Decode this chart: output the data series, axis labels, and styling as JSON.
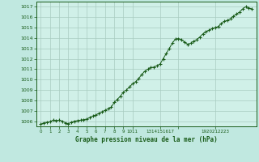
{
  "title": "Graphe pression niveau de la mer (hPa)",
  "bg_color": "#c0e8e0",
  "plot_bg_color": "#d0f0e8",
  "line_color": "#1a5c1a",
  "marker_color": "#1a5c1a",
  "grid_color": "#a8ccc0",
  "tick_label_color": "#1a5c1a",
  "ylim": [
    1005.5,
    1017.5
  ],
  "xlim": [
    -0.5,
    23.5
  ],
  "yticks": [
    1006,
    1007,
    1008,
    1009,
    1010,
    1011,
    1012,
    1013,
    1014,
    1015,
    1016,
    1017
  ],
  "x": [
    0,
    0.33,
    0.67,
    1,
    1.33,
    1.67,
    2,
    2.33,
    2.67,
    3,
    3.33,
    3.67,
    4,
    4.33,
    4.67,
    5,
    5.33,
    5.67,
    6,
    6.33,
    6.67,
    7,
    7.33,
    7.67,
    8,
    8.33,
    8.67,
    9,
    9.33,
    9.67,
    10,
    10.33,
    10.67,
    11,
    11.33,
    11.67,
    12,
    12.33,
    12.67,
    13,
    13.33,
    13.67,
    14,
    14.33,
    14.67,
    15,
    15.33,
    15.67,
    16,
    16.33,
    16.67,
    17,
    17.33,
    17.67,
    18,
    18.33,
    18.67,
    19,
    19.33,
    19.67,
    20,
    20.33,
    20.67,
    21,
    21.33,
    21.67,
    22,
    22.33,
    22.67,
    23
  ],
  "y": [
    1005.7,
    1005.85,
    1005.9,
    1005.95,
    1006.1,
    1006.05,
    1006.1,
    1006.0,
    1005.85,
    1005.75,
    1005.9,
    1006.0,
    1006.05,
    1006.1,
    1006.15,
    1006.2,
    1006.35,
    1006.5,
    1006.6,
    1006.75,
    1006.9,
    1007.05,
    1007.2,
    1007.35,
    1007.8,
    1008.1,
    1008.4,
    1008.8,
    1009.0,
    1009.3,
    1009.6,
    1009.8,
    1010.1,
    1010.5,
    1010.8,
    1011.0,
    1011.15,
    1011.2,
    1011.35,
    1011.5,
    1012.0,
    1012.5,
    1013.0,
    1013.5,
    1013.9,
    1013.95,
    1013.85,
    1013.6,
    1013.4,
    1013.5,
    1013.7,
    1013.85,
    1014.1,
    1014.4,
    1014.6,
    1014.75,
    1014.9,
    1015.0,
    1015.1,
    1015.4,
    1015.6,
    1015.7,
    1015.85,
    1016.1,
    1016.3,
    1016.5,
    1016.8,
    1017.0,
    1016.9,
    1016.8
  ]
}
